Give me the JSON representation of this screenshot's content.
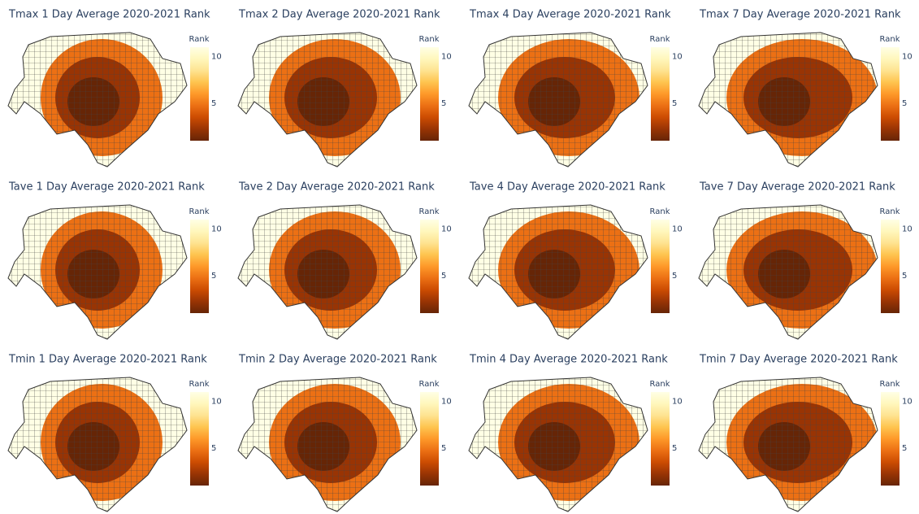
{
  "colorscale": [
    "#662506",
    "#993404",
    "#cc4c02",
    "#ec7014",
    "#fe9929",
    "#fec44f",
    "#fee391",
    "#fff7bc",
    "#ffffe5"
  ],
  "panels": [
    {
      "title": "Tmax 1 Day Average 2020-2021 Rank",
      "colorbar": {
        "title": "Rank",
        "range": [
          1,
          11
        ],
        "ticks": [
          5,
          10
        ]
      }
    },
    {
      "title": "Tmax 2 Day Average 2020-2021 Rank",
      "colorbar": {
        "title": "Rank",
        "range": [
          1,
          11
        ],
        "ticks": [
          5,
          10
        ]
      }
    },
    {
      "title": "Tmax 4 Day Average 2020-2021 Rank",
      "colorbar": {
        "title": "Rank",
        "range": [
          1,
          11
        ],
        "ticks": [
          5,
          10
        ]
      }
    },
    {
      "title": "Tmax 7 Day Average 2020-2021 Rank",
      "colorbar": {
        "title": "Rank",
        "range": [
          1,
          11
        ],
        "ticks": [
          5,
          10
        ]
      }
    },
    {
      "title": "Tave 1 Day Average 2020-2021 Rank",
      "colorbar": {
        "title": "Rank",
        "range": [
          1,
          11
        ],
        "ticks": [
          5,
          10
        ]
      }
    },
    {
      "title": "Tave 2 Day Average 2020-2021 Rank",
      "colorbar": {
        "title": "Rank",
        "range": [
          1,
          11
        ],
        "ticks": [
          5,
          10
        ]
      }
    },
    {
      "title": "Tave 4 Day Average 2020-2021 Rank",
      "colorbar": {
        "title": "Rank",
        "range": [
          1,
          11
        ],
        "ticks": [
          5,
          10
        ]
      }
    },
    {
      "title": "Tave 7 Day Average 2020-2021 Rank",
      "colorbar": {
        "title": "Rank",
        "range": [
          1,
          11
        ],
        "ticks": [
          5,
          10
        ]
      }
    },
    {
      "title": "Tmin 1 Day Average 2020-2021 Rank",
      "colorbar": {
        "title": "Rank",
        "range": [
          1,
          11
        ],
        "ticks": [
          5,
          10
        ]
      }
    },
    {
      "title": "Tmin 2 Day Average 2020-2021 Rank",
      "colorbar": {
        "title": "Rank",
        "range": [
          1,
          11
        ],
        "ticks": [
          5,
          10
        ]
      }
    },
    {
      "title": "Tmin 4 Day Average 2020-2021 Rank",
      "colorbar": {
        "title": "Rank",
        "range": [
          1,
          11
        ],
        "ticks": [
          5,
          10
        ]
      }
    },
    {
      "title": "Tmin 7 Day Average 2020-2021 Rank",
      "colorbar": {
        "title": "Rank",
        "range": [
          1,
          11
        ],
        "ticks": [
          5,
          10
        ]
      }
    }
  ]
}
